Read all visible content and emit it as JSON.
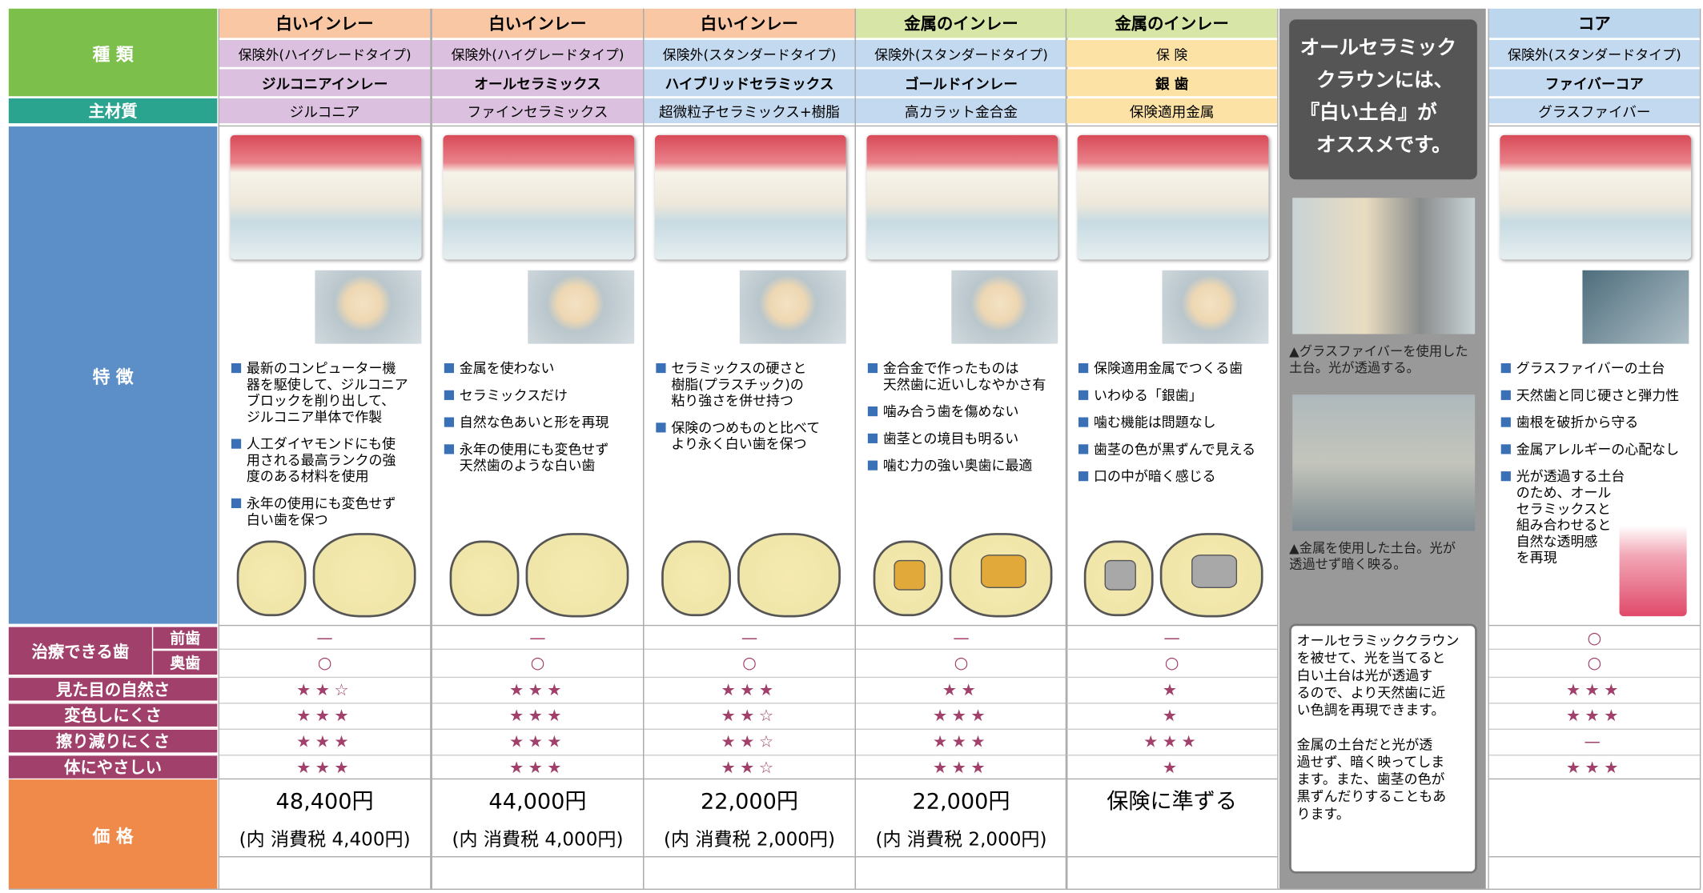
{
  "row_headers": {
    "type": "種 類",
    "material": "主材質",
    "features": "特 徴",
    "treatable": "治療できる歯",
    "front": "前歯",
    "back": "奥歯",
    "ratings": [
      "見た目の自然さ",
      "変色しにくさ",
      "擦り減りにくさ",
      "体にやさしい"
    ],
    "price": "価 格"
  },
  "columns": [
    {
      "category": "白いインレー",
      "class": "保険外(ハイグレードタイプ)",
      "name": "ジルコニアインレー",
      "material": "ジルコニア",
      "features": [
        [
          "最新のコンピューター機",
          "器を駆使して、ジルコニア",
          "ブロックを削り出して、",
          "ジルコニア単体で作製"
        ],
        [
          "人工ダイヤモンドにも使",
          "用される最高ランクの強",
          "度のある材料を使用"
        ],
        [
          "永年の使用にも変色せず",
          "白い歯を保つ"
        ]
      ],
      "front": "—",
      "back": "○",
      "ratings": [
        "★★☆",
        "★★★",
        "★★★",
        "★★★"
      ],
      "price": "48,400円",
      "tax": "(内 消費税 4,400円)"
    },
    {
      "category": "白いインレー",
      "class": "保険外(ハイグレードタイプ)",
      "name": "オールセラミックス",
      "material": "ファインセラミックス",
      "features": [
        [
          "金属を使わない"
        ],
        [
          "セラミックスだけ"
        ],
        [
          "自然な色あいと形を再現"
        ],
        [
          "永年の使用にも変色せず",
          "天然歯のような白い歯"
        ]
      ],
      "front": "—",
      "back": "○",
      "ratings": [
        "★★★",
        "★★★",
        "★★★",
        "★★★"
      ],
      "price": "44,000円",
      "tax": "(内 消費税 4,000円)"
    },
    {
      "category": "白いインレー",
      "class": "保険外(スタンダードタイプ)",
      "name": "ハイブリッドセラミックス",
      "material": "超微粒子セラミックス+樹脂",
      "features": [
        [
          "セラミックスの硬さと",
          "樹脂(プラスチック)の",
          "粘り強さを併せ持つ"
        ],
        [
          "保険のつめものと比べて",
          "より永く白い歯を保つ"
        ]
      ],
      "front": "—",
      "back": "○",
      "ratings": [
        "★★★",
        "★★☆",
        "★★☆",
        "★★☆"
      ],
      "price": "22,000円",
      "tax": "(内 消費税 2,000円)"
    },
    {
      "category": "金属のインレー",
      "class": "保険外(スタンダードタイプ)",
      "name": "ゴールドインレー",
      "material": "高カラット金合金",
      "features": [
        [
          "金合金で作ったものは",
          "天然歯に近いしなやかさ有"
        ],
        [
          "噛み合う歯を傷めない"
        ],
        [
          "歯茎との境目も明るい"
        ],
        [
          "噛む力の強い奥歯に最適"
        ]
      ],
      "front": "—",
      "back": "○",
      "ratings": [
        "★★",
        "★★★",
        "★★★",
        "★★★"
      ],
      "price": "22,000円",
      "tax": "(内 消費税 2,000円)"
    },
    {
      "category": "金属のインレー",
      "class": "保 険",
      "name": "銀 歯",
      "material": "保険適用金属",
      "features": [
        [
          "保険適用金属でつくる歯"
        ],
        [
          "いわゆる「銀歯」"
        ],
        [
          "噛む機能は問題なし"
        ],
        [
          "歯茎の色が黒ずんで見える"
        ],
        [
          "口の中が暗く感じる"
        ]
      ],
      "front": "—",
      "back": "○",
      "ratings": [
        "★",
        "★",
        "★★★",
        "★"
      ],
      "price": "保険に準ずる"
    },
    {
      "category": "コア",
      "class": "保険外(スタンダードタイプ)",
      "name": "ファイバーコア",
      "material": "グラスファイバー",
      "features": [
        [
          "グラスファイバーの土台"
        ],
        [
          "天然歯と同じ硬さと弾力性"
        ],
        [
          "歯根を破折から守る"
        ],
        [
          "金属アレルギーの心配なし"
        ],
        [
          "光が透過する土台",
          "のため、オール",
          "セラミックスと",
          "組み合わせると",
          "自然な透明感",
          "を再現"
        ]
      ],
      "front": "○",
      "back": "○",
      "ratings": [
        "★★★",
        "★★★",
        "—",
        "★★★"
      ]
    }
  ],
  "panel": {
    "title": [
      "オールセラミック",
      "クラウンには、",
      "『白い土台』が",
      "オススメです。"
    ],
    "caption1": [
      "▲グラスファイバーを使用した",
      "土台。光が透過する。"
    ],
    "caption2": [
      "▲金属を使用した土台。光が",
      "透過せず暗く映る。"
    ],
    "note": [
      [
        "オールセラミッククラウン",
        "を被せて、光を当てると",
        "白い土台は光が透過す",
        "るので、より天然歯に近",
        "い色調を再現できます。"
      ],
      [
        "金属の土台だと光が透",
        "過せず、暗く映ってしま",
        "ます。また、歯茎の色が",
        "黒ずんだりすることもあ",
        "ります。"
      ]
    ]
  }
}
